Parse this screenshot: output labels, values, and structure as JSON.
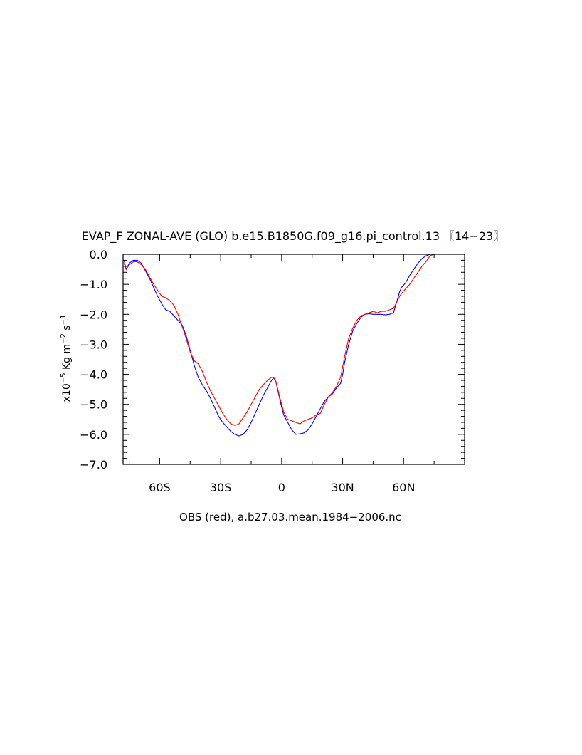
{
  "chart_data": {
    "type": "line",
    "title": "EVAP_F ZONAL-AVE (GLO) b.e15.B1850G.f09_g16.pi_control.13 〖14−23〗",
    "ylabel_base": "x10",
    "ylabel_exp": "−5",
    "ylabel_unit1": " Kg m",
    "ylabel_exp2": "−2",
    "ylabel_unit2": " s",
    "ylabel_exp3": "−1",
    "xlabel": "OBS (red), a.b27.03.mean.1984−2006.nc",
    "xlim": [
      -78,
      90
    ],
    "ylim": [
      -7.0,
      0.0
    ],
    "grid": false,
    "x_ticks": [
      {
        "value": -60,
        "label": "60S"
      },
      {
        "value": -30,
        "label": "30S"
      },
      {
        "value": 0,
        "label": "0"
      },
      {
        "value": 30,
        "label": "30N"
      },
      {
        "value": 60,
        "label": "60N"
      }
    ],
    "y_ticks": [
      {
        "value": 0.0,
        "label": "0.0"
      },
      {
        "value": -1.0,
        "label": "−1.0"
      },
      {
        "value": -2.0,
        "label": "−2.0"
      },
      {
        "value": -3.0,
        "label": "−3.0"
      },
      {
        "value": -4.0,
        "label": "−4.0"
      },
      {
        "value": -5.0,
        "label": "−5.0"
      },
      {
        "value": -6.0,
        "label": "−6.0"
      },
      {
        "value": -7.0,
        "label": "−7.0"
      }
    ],
    "series": [
      {
        "color": "#0000ff",
        "points": [
          [
            -77.5,
            -0.2
          ],
          [
            -76.5,
            -0.5
          ],
          [
            -75,
            -0.3
          ],
          [
            -73,
            -0.2
          ],
          [
            -71,
            -0.2
          ],
          [
            -69,
            -0.3
          ],
          [
            -67,
            -0.55
          ],
          [
            -65,
            -0.8
          ],
          [
            -63,
            -1.1
          ],
          [
            -61,
            -1.4
          ],
          [
            -59,
            -1.65
          ],
          [
            -57,
            -1.85
          ],
          [
            -55,
            -1.9
          ],
          [
            -53,
            -2.05
          ],
          [
            -51,
            -2.2
          ],
          [
            -49,
            -2.35
          ],
          [
            -47,
            -2.7
          ],
          [
            -45,
            -3.2
          ],
          [
            -43,
            -3.7
          ],
          [
            -41,
            -4.1
          ],
          [
            -39,
            -4.35
          ],
          [
            -37,
            -4.55
          ],
          [
            -35,
            -4.8
          ],
          [
            -33,
            -5.1
          ],
          [
            -31,
            -5.4
          ],
          [
            -29,
            -5.6
          ],
          [
            -27,
            -5.75
          ],
          [
            -25,
            -5.9
          ],
          [
            -23,
            -6.0
          ],
          [
            -21,
            -6.05
          ],
          [
            -19,
            -6.0
          ],
          [
            -17,
            -5.85
          ],
          [
            -15,
            -5.6
          ],
          [
            -13,
            -5.3
          ],
          [
            -11,
            -5.0
          ],
          [
            -9,
            -4.7
          ],
          [
            -7,
            -4.45
          ],
          [
            -5,
            -4.2
          ],
          [
            -4,
            -4.12
          ],
          [
            -3,
            -4.2
          ],
          [
            -2,
            -4.5
          ],
          [
            -1,
            -4.8
          ],
          [
            0,
            -5.1
          ],
          [
            1,
            -5.35
          ],
          [
            3,
            -5.6
          ],
          [
            5,
            -5.85
          ],
          [
            7,
            -6.0
          ],
          [
            9,
            -5.98
          ],
          [
            11,
            -5.95
          ],
          [
            13,
            -5.85
          ],
          [
            15,
            -5.65
          ],
          [
            17,
            -5.4
          ],
          [
            19,
            -5.15
          ],
          [
            21,
            -4.9
          ],
          [
            23,
            -4.75
          ],
          [
            25,
            -4.65
          ],
          [
            27,
            -4.45
          ],
          [
            29,
            -4.3
          ],
          [
            30,
            -4.0
          ],
          [
            31,
            -3.6
          ],
          [
            33,
            -3.0
          ],
          [
            35,
            -2.55
          ],
          [
            37,
            -2.3
          ],
          [
            39,
            -2.1
          ],
          [
            41,
            -2.0
          ],
          [
            43,
            -1.98
          ],
          [
            45,
            -2.0
          ],
          [
            47,
            -2.0
          ],
          [
            49,
            -2.0
          ],
          [
            51,
            -2.02
          ],
          [
            53,
            -2.0
          ],
          [
            55,
            -1.95
          ],
          [
            57,
            -1.5
          ],
          [
            58,
            -1.25
          ],
          [
            59,
            -1.1
          ],
          [
            61,
            -0.95
          ],
          [
            63,
            -0.7
          ],
          [
            65,
            -0.5
          ],
          [
            67,
            -0.3
          ],
          [
            69,
            -0.15
          ],
          [
            71,
            -0.05
          ],
          [
            73,
            0.0
          ],
          [
            75,
            0.0
          ],
          [
            80,
            0.0
          ],
          [
            85,
            0.0
          ],
          [
            89,
            0.0
          ]
        ]
      },
      {
        "color": "#ff0000",
        "points": [
          [
            -77.5,
            -0.3
          ],
          [
            -76.5,
            -0.5
          ],
          [
            -75,
            -0.35
          ],
          [
            -73,
            -0.25
          ],
          [
            -71,
            -0.25
          ],
          [
            -69,
            -0.35
          ],
          [
            -67,
            -0.5
          ],
          [
            -65,
            -0.75
          ],
          [
            -63,
            -1.0
          ],
          [
            -61,
            -1.2
          ],
          [
            -59,
            -1.4
          ],
          [
            -57,
            -1.45
          ],
          [
            -55,
            -1.55
          ],
          [
            -53,
            -1.7
          ],
          [
            -51,
            -2.0
          ],
          [
            -49,
            -2.4
          ],
          [
            -47,
            -2.8
          ],
          [
            -45,
            -3.25
          ],
          [
            -43,
            -3.55
          ],
          [
            -41,
            -3.65
          ],
          [
            -39,
            -3.9
          ],
          [
            -37,
            -4.25
          ],
          [
            -35,
            -4.55
          ],
          [
            -33,
            -4.8
          ],
          [
            -31,
            -5.05
          ],
          [
            -29,
            -5.3
          ],
          [
            -27,
            -5.5
          ],
          [
            -25,
            -5.65
          ],
          [
            -23,
            -5.7
          ],
          [
            -21,
            -5.65
          ],
          [
            -19,
            -5.45
          ],
          [
            -17,
            -5.25
          ],
          [
            -15,
            -5.0
          ],
          [
            -13,
            -4.75
          ],
          [
            -11,
            -4.5
          ],
          [
            -9,
            -4.35
          ],
          [
            -7,
            -4.2
          ],
          [
            -5,
            -4.1
          ],
          [
            -4,
            -4.1
          ],
          [
            -3,
            -4.2
          ],
          [
            -2,
            -4.45
          ],
          [
            -1,
            -4.75
          ],
          [
            0,
            -5.0
          ],
          [
            1,
            -5.25
          ],
          [
            3,
            -5.5
          ],
          [
            5,
            -5.55
          ],
          [
            7,
            -5.6
          ],
          [
            9,
            -5.65
          ],
          [
            11,
            -5.55
          ],
          [
            13,
            -5.5
          ],
          [
            15,
            -5.45
          ],
          [
            17,
            -5.35
          ],
          [
            19,
            -5.3
          ],
          [
            21,
            -5.0
          ],
          [
            23,
            -4.75
          ],
          [
            25,
            -4.6
          ],
          [
            27,
            -4.4
          ],
          [
            29,
            -4.1
          ],
          [
            30,
            -3.75
          ],
          [
            31,
            -3.4
          ],
          [
            33,
            -2.8
          ],
          [
            35,
            -2.45
          ],
          [
            37,
            -2.2
          ],
          [
            39,
            -2.05
          ],
          [
            41,
            -2.0
          ],
          [
            43,
            -1.95
          ],
          [
            45,
            -1.9
          ],
          [
            47,
            -1.95
          ],
          [
            49,
            -1.9
          ],
          [
            51,
            -1.9
          ],
          [
            53,
            -1.85
          ],
          [
            55,
            -1.8
          ],
          [
            57,
            -1.55
          ],
          [
            58,
            -1.4
          ],
          [
            59,
            -1.3
          ],
          [
            61,
            -1.15
          ],
          [
            63,
            -1.0
          ],
          [
            65,
            -0.8
          ],
          [
            67,
            -0.6
          ],
          [
            69,
            -0.4
          ],
          [
            71,
            -0.25
          ],
          [
            73,
            -0.05
          ],
          [
            75,
            0.0
          ],
          [
            80,
            0.0
          ],
          [
            85,
            0.0
          ],
          [
            89,
            0.0
          ]
        ]
      }
    ]
  }
}
